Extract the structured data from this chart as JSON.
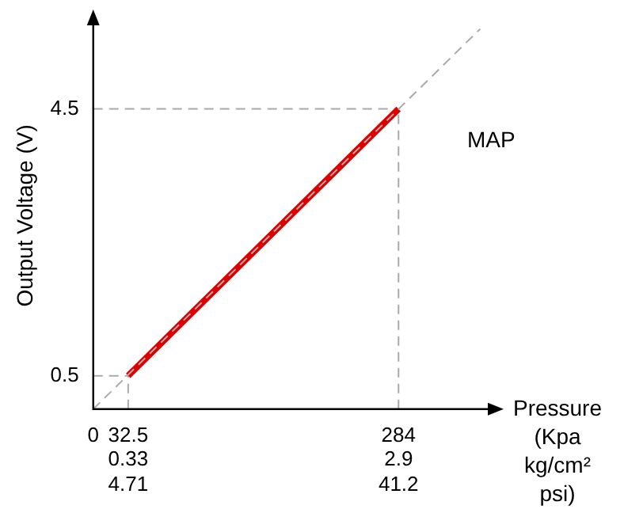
{
  "chart_data": {
    "type": "line",
    "ylabel": "Output Voltage (V)",
    "xlabel": "Pressure\n(Kpa\nkg/cm²\npsi)",
    "x": [
      32.5,
      284
    ],
    "series": [
      {
        "color": "#dd0000",
        "values": [
          0.5,
          4.5
        ]
      },
      {
        "type": "line",
        "line_style": "dashed",
        "color": "#aaaaaa",
        "x": [
          0,
          360
        ],
        "values": [
          0,
          5.7
        ]
      }
    ],
    "xlim": [
      0,
      370
    ],
    "ylim": [
      0,
      5.8
    ],
    "xticks": [
      0,
      32.5,
      284
    ],
    "yticks": [
      0.5,
      4.5
    ],
    "ref_lines": [
      {
        "axis": "y",
        "value": 0.5,
        "line_style": "dashed",
        "color": "#aaaaaa"
      },
      {
        "axis": "y",
        "value": 4.5,
        "line_style": "dashed",
        "color": "#aaaaaa"
      },
      {
        "axis": "x",
        "value": 32.5,
        "line_style": "dashed",
        "color": "#aaaaaa"
      },
      {
        "axis": "x",
        "value": 284,
        "line_style": "dashed",
        "color": "#aaaaaa"
      }
    ],
    "annotations": [
      "MAP",
      "0.33\n4.71",
      "2.9\n41.2"
    ],
    "grid": false,
    "legend": false,
    "marker": "none"
  }
}
